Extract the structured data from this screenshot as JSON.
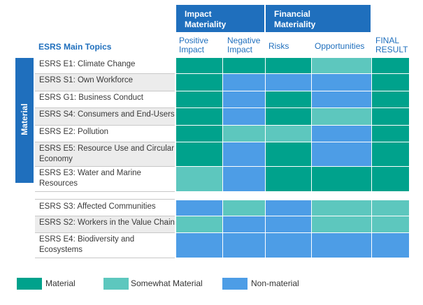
{
  "header": {
    "groups": [
      {
        "label": "Impact\nMateriality"
      },
      {
        "label": "Financial\nMateriality"
      }
    ],
    "topics_title": "ESRS Main Topics",
    "columns": [
      {
        "label": "Positive\nImpact"
      },
      {
        "label": "Negative\nImpact"
      },
      {
        "label": "Risks"
      },
      {
        "label": "Opportunities"
      },
      {
        "label": "FINAL\nRESULT"
      }
    ],
    "side_label": "Material"
  },
  "colors": {
    "material": "#00a28c",
    "somewhat": "#5dc7be",
    "non_material": "#4d9de6",
    "header_blue": "#1f6fbd",
    "row_shade": "#ececec"
  },
  "chart_data": {
    "type": "table",
    "columns": [
      "Positive Impact",
      "Negative Impact",
      "Risks",
      "Opportunities",
      "FINAL RESULT"
    ],
    "legend": [
      {
        "key": "M",
        "label": "Material"
      },
      {
        "key": "S",
        "label": "Somewhat Material"
      },
      {
        "key": "N",
        "label": "Non-material"
      }
    ],
    "groups": [
      {
        "rows": [
          {
            "label": "ESRS E1: Climate Change",
            "values": [
              "M",
              "M",
              "M",
              "S",
              "M"
            ]
          },
          {
            "label": "ESRS S1: Own Workforce",
            "values": [
              "M",
              "N",
              "N",
              "N",
              "M"
            ]
          },
          {
            "label": "ESRS G1: Business Conduct",
            "values": [
              "M",
              "N",
              "M",
              "N",
              "M"
            ]
          },
          {
            "label": "ESRS S4: Consumers and End-Users",
            "values": [
              "M",
              "N",
              "M",
              "S",
              "M"
            ]
          },
          {
            "label": "ESRS E2: Pollution",
            "values": [
              "M",
              "S",
              "S",
              "N",
              "M"
            ]
          },
          {
            "label": "ESRS E5: Resource Use and Circular\nEconomy",
            "values": [
              "M",
              "N",
              "M",
              "N",
              "M"
            ]
          },
          {
            "label": "ESRS E3: Water and Marine\nResources",
            "values": [
              "S",
              "N",
              "M",
              "M",
              "M"
            ]
          }
        ]
      },
      {
        "rows": [
          {
            "label": "ESRS S3: Affected Communities",
            "values": [
              "N",
              "S",
              "N",
              "S",
              "S"
            ]
          },
          {
            "label": "ESRS S2: Workers in the Value Chain",
            "values": [
              "S",
              "N",
              "N",
              "S",
              "S"
            ]
          },
          {
            "label": "ESRS E4: Biodiversity and\nEcosystems",
            "values": [
              "N",
              "N",
              "N",
              "N",
              "N"
            ]
          }
        ]
      }
    ]
  }
}
